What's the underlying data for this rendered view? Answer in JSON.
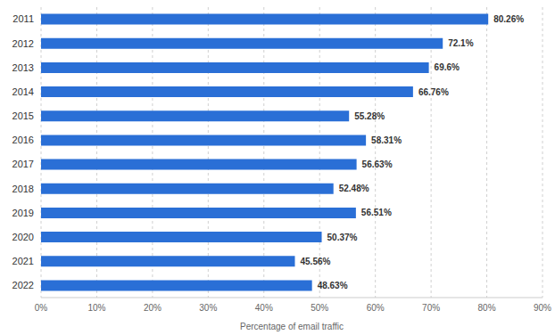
{
  "chart_data": {
    "type": "bar",
    "orientation": "horizontal",
    "x_label": "Percentage of email traffic",
    "categories": [
      "2011",
      "2012",
      "2013",
      "2014",
      "2015",
      "2016",
      "2017",
      "2018",
      "2019",
      "2020",
      "2021",
      "2022"
    ],
    "values": [
      80.26,
      72.1,
      69.6,
      66.76,
      55.28,
      58.31,
      56.63,
      52.48,
      56.51,
      50.37,
      45.56,
      48.63
    ],
    "value_labels": [
      "80.26%",
      "72.1%",
      "69.6%",
      "66.76%",
      "55.28%",
      "58.31%",
      "56.63%",
      "52.48%",
      "56.51%",
      "50.37%",
      "45.56%",
      "48.63%"
    ],
    "data_labels": true,
    "color": "#2a6fd6",
    "xlim": [
      0,
      90
    ],
    "xticks": [
      {
        "value": 0,
        "label": "0%"
      },
      {
        "value": 10,
        "label": "10%"
      },
      {
        "value": 20,
        "label": "20%"
      },
      {
        "value": 30,
        "label": "30%"
      },
      {
        "value": 40,
        "label": "40%"
      },
      {
        "value": 50,
        "label": "50%"
      },
      {
        "value": 60,
        "label": "60%"
      },
      {
        "value": 70,
        "label": "70%"
      },
      {
        "value": 80,
        "label": "80%"
      },
      {
        "value": 90,
        "label": "90%"
      }
    ],
    "grid": true
  }
}
